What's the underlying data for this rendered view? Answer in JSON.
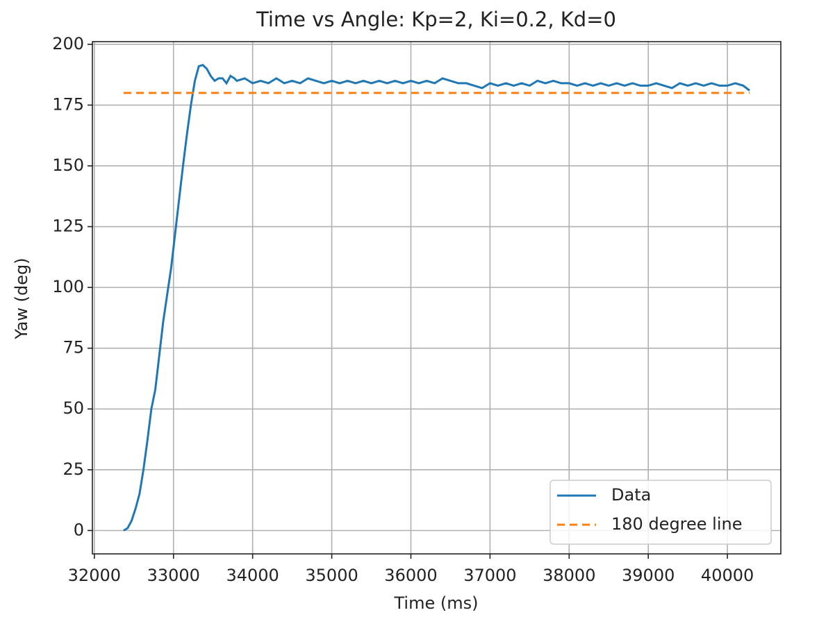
{
  "chart_data": {
    "type": "line",
    "title": "Time vs Angle: Kp=2, Ki=0.2, Kd=0",
    "x_label": "Time (ms)",
    "y_label": "Yaw (deg)",
    "xlim": [
      31975,
      40675
    ],
    "ylim": [
      -9.6,
      201.1
    ],
    "xticks": [
      32000,
      33000,
      34000,
      35000,
      36000,
      37000,
      38000,
      39000,
      40000
    ],
    "yticks": [
      0,
      25,
      50,
      75,
      100,
      125,
      150,
      175,
      200
    ],
    "grid": true,
    "legend": "lower right",
    "series": [
      {
        "name": "Data",
        "color": "#1f77b4",
        "dash": false,
        "x": [
          32370,
          32420,
          32470,
          32520,
          32570,
          32620,
          32670,
          32720,
          32770,
          32820,
          32870,
          32920,
          32970,
          33020,
          33070,
          33120,
          33170,
          33220,
          33270,
          33320,
          33370,
          33420,
          33470,
          33520,
          33570,
          33620,
          33670,
          33720,
          33770,
          33800,
          33900,
          34000,
          34100,
          34200,
          34300,
          34400,
          34500,
          34600,
          34700,
          34800,
          34900,
          35000,
          35100,
          35200,
          35300,
          35400,
          35500,
          35600,
          35700,
          35800,
          35900,
          36000,
          36100,
          36200,
          36300,
          36400,
          36500,
          36600,
          36700,
          36800,
          36900,
          37000,
          37100,
          37200,
          37300,
          37400,
          37500,
          37600,
          37700,
          37800,
          37900,
          38000,
          38100,
          38200,
          38300,
          38400,
          38500,
          38600,
          38700,
          38800,
          38900,
          39000,
          39100,
          39200,
          39300,
          39400,
          39500,
          39600,
          39700,
          39800,
          39900,
          40000,
          40100,
          40200,
          40280
        ],
        "values": [
          0,
          1,
          4,
          9,
          15,
          25,
          37,
          50,
          58,
          72,
          86,
          97,
          108,
          122,
          136,
          150,
          163,
          175,
          185,
          191,
          191.5,
          190,
          187,
          185,
          186,
          186,
          184,
          187,
          186,
          185,
          186,
          184,
          185,
          184,
          186,
          184,
          185,
          184,
          186,
          185,
          184,
          185,
          184,
          185,
          184,
          185,
          184,
          185,
          184,
          185,
          184,
          185,
          184,
          185,
          184,
          186,
          185,
          184,
          184,
          183,
          182,
          184,
          183,
          184,
          183,
          184,
          183,
          185,
          184,
          185,
          184,
          184,
          183,
          184,
          183,
          184,
          183,
          184,
          183,
          184,
          183,
          183,
          184,
          183,
          182,
          184,
          183,
          184,
          183,
          184,
          183,
          183,
          184,
          183,
          181
        ]
      },
      {
        "name": "180 degree line",
        "color": "#ff7f0e",
        "dash": true,
        "x": [
          32370,
          40280
        ],
        "values": [
          180,
          180
        ]
      }
    ]
  }
}
